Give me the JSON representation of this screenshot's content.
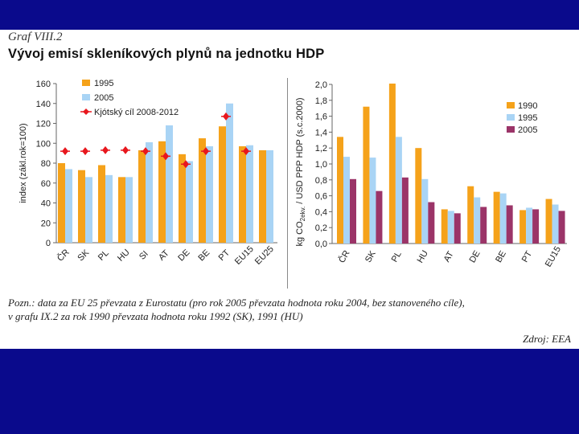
{
  "header": {
    "graf_label": "Graf VIII.2",
    "title": "Vývoj emisí skleníkových plynů na jednotku HDP"
  },
  "footer": {
    "note_line1": "Pozn.: data za EU 25 převzata z Eurostatu (pro rok 2005 převzata hodnota roku 2004, bez stanoveného cíle),",
    "note_line2": "v grafu IX.2 za rok 1990 převzata hodnota roku 1992 (SK), 1991 (HU)",
    "source": "Zdroj: EEA"
  },
  "colors": {
    "orange": "#f5a21a",
    "lightblue": "#a9d4f5",
    "maroon": "#9b3468",
    "red": "#e8171d",
    "band": "#0a0a8c"
  },
  "chart_data": [
    {
      "type": "bar",
      "title": "",
      "ylabel": "index (zákl.rok=100)",
      "ylim": [
        0,
        160
      ],
      "yticks": [
        "0",
        "20",
        "40",
        "60",
        "80",
        "100",
        "120",
        "140",
        "160"
      ],
      "categories": [
        "ČR",
        "SK",
        "PL",
        "HU",
        "SI",
        "AT",
        "DE",
        "BE",
        "PT",
        "EU15",
        "EU25"
      ],
      "series": [
        {
          "name": "1995",
          "values": [
            80,
            73,
            78,
            66,
            93,
            102,
            89,
            105,
            117,
            97,
            93
          ]
        },
        {
          "name": "2005",
          "values": [
            74,
            66,
            68,
            66,
            101,
            118,
            82,
            97,
            140,
            98,
            93
          ]
        }
      ],
      "markers": {
        "name": "Kjótský cíl 2008-2012",
        "values": [
          92,
          92,
          93,
          93,
          92,
          87,
          79,
          92,
          127,
          92,
          null
        ]
      }
    },
    {
      "type": "bar",
      "title": "",
      "ylabel": "kg CO2ekv. / USD PPP HDP (s.c.2000)",
      "ylabel_main": "kg CO",
      "ylabel_sub": "2ekv.",
      "ylabel_rest": " / USD PPP HDP (s.c.2000)",
      "ylim": [
        0,
        2.0
      ],
      "yticks": [
        "0,0",
        "0,2",
        "0,4",
        "0,6",
        "0,8",
        "1,0",
        "1,2",
        "1,4",
        "1,6",
        "1,8",
        "2,0"
      ],
      "categories": [
        "ČR",
        "SK",
        "PL",
        "HU",
        "AT",
        "DE",
        "BE",
        "PT",
        "EU15"
      ],
      "series": [
        {
          "name": "1990",
          "values": [
            1.34,
            1.72,
            2.01,
            1.2,
            0.43,
            0.72,
            0.65,
            0.42,
            0.56
          ]
        },
        {
          "name": "1995",
          "values": [
            1.09,
            1.08,
            1.34,
            0.81,
            0.41,
            0.58,
            0.63,
            0.45,
            0.49
          ]
        },
        {
          "name": "2005",
          "values": [
            0.81,
            0.66,
            0.83,
            0.52,
            0.38,
            0.46,
            0.48,
            0.43,
            0.41
          ]
        }
      ]
    }
  ]
}
